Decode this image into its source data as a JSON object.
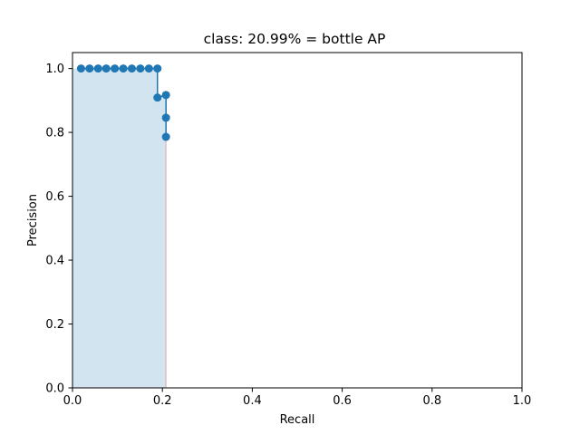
{
  "chart_data": {
    "type": "line",
    "title": "class: 20.99% = bottle AP",
    "xlabel": "Recall",
    "ylabel": "Precision",
    "xlim": [
      0.0,
      1.0
    ],
    "ylim": [
      0.0,
      1.05
    ],
    "xticks": [
      "0.0",
      "0.2",
      "0.4",
      "0.6",
      "0.8",
      "1.0"
    ],
    "yticks": [
      "0.0",
      "0.2",
      "0.4",
      "0.6",
      "0.8",
      "1.0"
    ],
    "grid": false,
    "legend": "none",
    "series": [
      {
        "style": "line-with-markers",
        "color": "#1f77b4",
        "x": [
          0.019,
          0.038,
          0.057,
          0.075,
          0.094,
          0.113,
          0.132,
          0.151,
          0.17,
          0.189,
          0.189,
          0.208,
          0.208,
          0.208
        ],
        "y": [
          1.0,
          1.0,
          1.0,
          1.0,
          1.0,
          1.0,
          1.0,
          1.0,
          1.0,
          1.0,
          0.909,
          0.917,
          0.846,
          0.786
        ]
      }
    ],
    "area": {
      "color": "#1f77b4",
      "edge_color": "#d62728",
      "x": [
        0.0,
        0.189,
        0.189,
        0.208,
        0.208
      ],
      "y": [
        1.0,
        1.0,
        0.917,
        0.917,
        0.0
      ]
    }
  }
}
